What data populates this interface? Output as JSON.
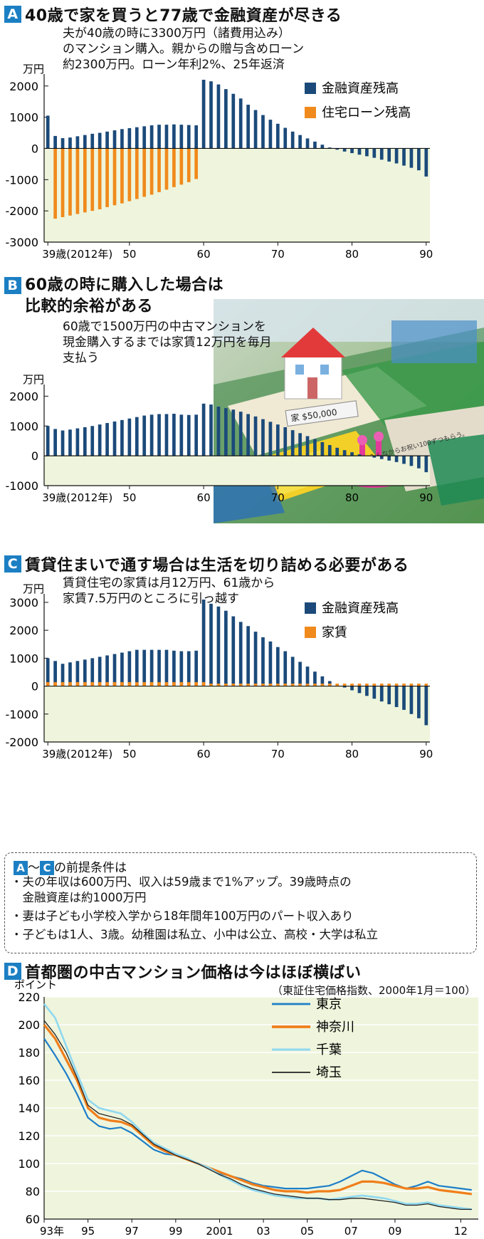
{
  "panel_a": {
    "badge": "A",
    "title": "40歳で家を買うと77歳で金融資産が尽きる",
    "note_lines": [
      "夫が40歳の時に3300万円（諸費用込み）",
      "のマンション購入。親からの贈与含めローン",
      "約2300万円。ローン年利2%、25年返済"
    ],
    "unit": "万円",
    "y_ticks": [
      "2000",
      "1000",
      "0",
      "-1000",
      "-2000",
      "-3000"
    ],
    "x_ticks": [
      "39歳(2012年)",
      "50",
      "60",
      "70",
      "80",
      "90"
    ],
    "legend": [
      {
        "label": "金融資産残高",
        "color": "#1b4a7a"
      },
      {
        "label": "住宅ローン残高",
        "color": "#f08a1c"
      }
    ]
  },
  "panel_b": {
    "badge": "B",
    "title_lines": [
      "60歳の時に購入した場合は",
      "比較的余裕がある"
    ],
    "note_lines": [
      "60歳で1500万円の中古マンションを",
      "現金購入するまでは家賃12万円を毎月",
      "支払う"
    ],
    "unit": "万円",
    "y_ticks": [
      "2000",
      "1000",
      "0",
      "-1000"
    ],
    "x_ticks": [
      "39歳(2012年)",
      "50",
      "60",
      "70",
      "80",
      "90"
    ],
    "photo": {
      "sign_text": "家 $50,000",
      "card_text": "子供を1人産む。子供1人産んだら、みんなからお祝い100ずつもらう。"
    }
  },
  "panel_c": {
    "badge": "C",
    "title": "賃貸住まいで通す場合は生活を切り詰める必要がある",
    "note_lines": [
      "賃貸住宅の家賃は月12万円、61歳から",
      "家賃7.5万円のところに引っ越す"
    ],
    "unit": "万円",
    "y_ticks": [
      "3000",
      "2000",
      "1000",
      "0",
      "-1000",
      "-2000"
    ],
    "x_ticks": [
      "39歳(2012年)",
      "50",
      "60",
      "70",
      "80",
      "90"
    ],
    "legend": [
      {
        "label": "金融資産残高",
        "color": "#1b4a7a"
      },
      {
        "label": "家賃",
        "color": "#f08a1c"
      }
    ]
  },
  "conditions": {
    "badge_a": "A",
    "badge_c": "C",
    "tilde": "～",
    "header_suffix": "の前提条件は",
    "items": [
      "・夫の年収は600万円、収入は59歳まで1%アップ。39歳時点の",
      "　金融資産は約1000万円",
      "・妻は子ども小学校入学から18年間年100万円のパート収入あり",
      "・子どもは1人、3歳。幼稚園は私立、小中は公立、高校・大学は私立"
    ]
  },
  "panel_d": {
    "badge": "D",
    "title": "首都圏の中古マンション価格は今はほぼ横ばい",
    "subtitle": "（東証住宅価格指数、2000年1月＝100）",
    "unit": "ポイント",
    "y_ticks": [
      "220",
      "200",
      "180",
      "160",
      "140",
      "120",
      "100",
      "80",
      "60"
    ],
    "x_ticks": [
      "93年",
      "95",
      "97",
      "99",
      "2001",
      "03",
      "05",
      "07",
      "09",
      "12"
    ],
    "legend": [
      {
        "label": "東京",
        "color": "#1e7ec8"
      },
      {
        "label": "神奈川",
        "color": "#f07e1a"
      },
      {
        "label": "千葉",
        "color": "#8fd8f0"
      },
      {
        "label": "埼玉",
        "color": "#222222"
      }
    ]
  },
  "chart_data": [
    {
      "type": "bar",
      "title": "40歳で家を買うと77歳で金融資産が尽きる",
      "ylabel": "万円",
      "ylim": [
        -3000,
        2200
      ],
      "x": [
        39,
        40,
        41,
        42,
        43,
        44,
        45,
        46,
        47,
        48,
        49,
        50,
        51,
        52,
        53,
        54,
        55,
        56,
        57,
        58,
        59,
        60,
        61,
        62,
        63,
        64,
        65,
        66,
        67,
        68,
        69,
        70,
        71,
        72,
        73,
        74,
        75,
        76,
        77,
        78,
        79,
        80,
        81,
        82,
        83,
        84,
        85,
        86,
        87,
        88,
        89,
        90
      ],
      "series": [
        {
          "name": "金融資産残高",
          "values": [
            1050,
            400,
            330,
            350,
            390,
            430,
            470,
            500,
            540,
            580,
            620,
            650,
            680,
            710,
            740,
            760,
            760,
            770,
            760,
            750,
            740,
            2200,
            2150,
            2050,
            1900,
            1750,
            1600,
            1400,
            1230,
            1070,
            920,
            790,
            660,
            540,
            430,
            320,
            220,
            120,
            30,
            -40,
            -100,
            -150,
            -200,
            -250,
            -300,
            -360,
            -420,
            -480,
            -550,
            -620,
            -700,
            -900
          ]
        },
        {
          "name": "住宅ローン残高",
          "values": [
            0,
            -2250,
            -2200,
            -2150,
            -2100,
            -2050,
            -2000,
            -1950,
            -1880,
            -1820,
            -1760,
            -1690,
            -1620,
            -1550,
            -1480,
            -1400,
            -1320,
            -1240,
            -1160,
            -1080,
            -980,
            0,
            0,
            0,
            0,
            0,
            0,
            0,
            0,
            0,
            0,
            0,
            0,
            0,
            0,
            0,
            0,
            0,
            0,
            0,
            0,
            0,
            0,
            0,
            0,
            0,
            0,
            0,
            0,
            0,
            0,
            0
          ]
        }
      ]
    },
    {
      "type": "bar",
      "title": "60歳の時に購入した場合は比較的余裕がある",
      "ylabel": "万円",
      "ylim": [
        -1000,
        2200
      ],
      "x": [
        39,
        40,
        41,
        42,
        43,
        44,
        45,
        46,
        47,
        48,
        49,
        50,
        51,
        52,
        53,
        54,
        55,
        56,
        57,
        58,
        59,
        60,
        61,
        62,
        63,
        64,
        65,
        66,
        67,
        68,
        69,
        70,
        71,
        72,
        73,
        74,
        75,
        76,
        77,
        78,
        79,
        80,
        81,
        82,
        83,
        84,
        85,
        86,
        87,
        88,
        89,
        90
      ],
      "series": [
        {
          "name": "金融資産残高",
          "values": [
            1000,
            900,
            850,
            880,
            920,
            960,
            1000,
            1050,
            1100,
            1150,
            1200,
            1250,
            1300,
            1350,
            1380,
            1400,
            1400,
            1410,
            1380,
            1370,
            1380,
            1750,
            1720,
            1650,
            1600,
            1550,
            1480,
            1400,
            1320,
            1230,
            1140,
            1050,
            960,
            860,
            760,
            660,
            560,
            460,
            360,
            270,
            190,
            120,
            50,
            -10,
            -60,
            -110,
            -160,
            -210,
            -270,
            -340,
            -420,
            -550
          ]
        }
      ]
    },
    {
      "type": "bar",
      "title": "賃貸住まいで通す場合は生活を切り詰める必要がある",
      "ylabel": "万円",
      "ylim": [
        -2000,
        3100
      ],
      "x": [
        39,
        40,
        41,
        42,
        43,
        44,
        45,
        46,
        47,
        48,
        49,
        50,
        51,
        52,
        53,
        54,
        55,
        56,
        57,
        58,
        59,
        60,
        61,
        62,
        63,
        64,
        65,
        66,
        67,
        68,
        69,
        70,
        71,
        72,
        73,
        74,
        75,
        76,
        77,
        78,
        79,
        80,
        81,
        82,
        83,
        84,
        85,
        86,
        87,
        88,
        89,
        90
      ],
      "series": [
        {
          "name": "金融資産残高",
          "values": [
            1000,
            900,
            800,
            850,
            900,
            950,
            1000,
            1050,
            1100,
            1150,
            1200,
            1250,
            1300,
            1300,
            1300,
            1300,
            1300,
            1270,
            1250,
            1250,
            1270,
            3100,
            2950,
            2850,
            2700,
            2500,
            2300,
            2150,
            1950,
            1750,
            1600,
            1400,
            1250,
            1050,
            870,
            700,
            520,
            350,
            180,
            50,
            -50,
            -150,
            -250,
            -350,
            -450,
            -550,
            -650,
            -750,
            -850,
            -1000,
            -1150,
            -1400
          ]
        },
        {
          "name": "家賃",
          "values": [
            144,
            144,
            144,
            144,
            144,
            144,
            144,
            144,
            144,
            144,
            144,
            144,
            144,
            144,
            144,
            144,
            144,
            144,
            144,
            144,
            144,
            144,
            90,
            90,
            90,
            90,
            90,
            90,
            90,
            90,
            90,
            90,
            90,
            90,
            90,
            90,
            90,
            90,
            90,
            90,
            90,
            90,
            90,
            90,
            90,
            90,
            90,
            90,
            90,
            90,
            90,
            90
          ]
        }
      ]
    },
    {
      "type": "line",
      "title": "首都圏の中古マンション価格は今はほぼ横ばい",
      "subtitle": "（東証住宅価格指数、2000年1月＝100）",
      "ylabel": "ポイント",
      "ylim": [
        60,
        220
      ],
      "x": [
        1993,
        1993.5,
        1994,
        1994.5,
        1995,
        1995.5,
        1996,
        1996.5,
        1997,
        1997.5,
        1998,
        1998.5,
        1999,
        1999.5,
        2000,
        2000.5,
        2001,
        2001.5,
        2002,
        2002.5,
        2003,
        2003.5,
        2004,
        2004.5,
        2005,
        2005.5,
        2006,
        2006.5,
        2007,
        2007.5,
        2008,
        2008.5,
        2009,
        2009.5,
        2010,
        2010.5,
        2011,
        2011.5,
        2012,
        2012.5
      ],
      "series": [
        {
          "name": "東京",
          "values": [
            190,
            178,
            165,
            150,
            133,
            127,
            125,
            126,
            122,
            116,
            110,
            107,
            106,
            103,
            100,
            97,
            93,
            91,
            89,
            86,
            84,
            83,
            82,
            82,
            82,
            83,
            84,
            87,
            91,
            95,
            93,
            89,
            85,
            82,
            84,
            87,
            84,
            83,
            82,
            81
          ]
        },
        {
          "name": "神奈川",
          "values": [
            200,
            190,
            175,
            160,
            140,
            133,
            131,
            130,
            127,
            120,
            113,
            109,
            106,
            103,
            100,
            97,
            94,
            91,
            88,
            85,
            83,
            81,
            80,
            80,
            79,
            80,
            80,
            81,
            84,
            87,
            87,
            86,
            84,
            82,
            82,
            83,
            81,
            80,
            79,
            78
          ]
        },
        {
          "name": "千葉",
          "values": [
            215,
            205,
            185,
            165,
            146,
            140,
            138,
            136,
            130,
            122,
            115,
            111,
            107,
            104,
            100,
            97,
            92,
            88,
            84,
            81,
            79,
            77,
            76,
            75,
            75,
            75,
            74,
            75,
            76,
            77,
            76,
            75,
            73,
            71,
            71,
            72,
            70,
            69,
            68,
            67
          ]
        },
        {
          "name": "埼玉",
          "values": [
            203,
            193,
            180,
            162,
            142,
            136,
            134,
            132,
            128,
            121,
            114,
            110,
            106,
            103,
            100,
            96,
            92,
            89,
            85,
            82,
            80,
            78,
            77,
            76,
            75,
            75,
            74,
            74,
            75,
            75,
            74,
            73,
            72,
            70,
            70,
            71,
            69,
            68,
            67,
            67
          ]
        }
      ]
    }
  ]
}
